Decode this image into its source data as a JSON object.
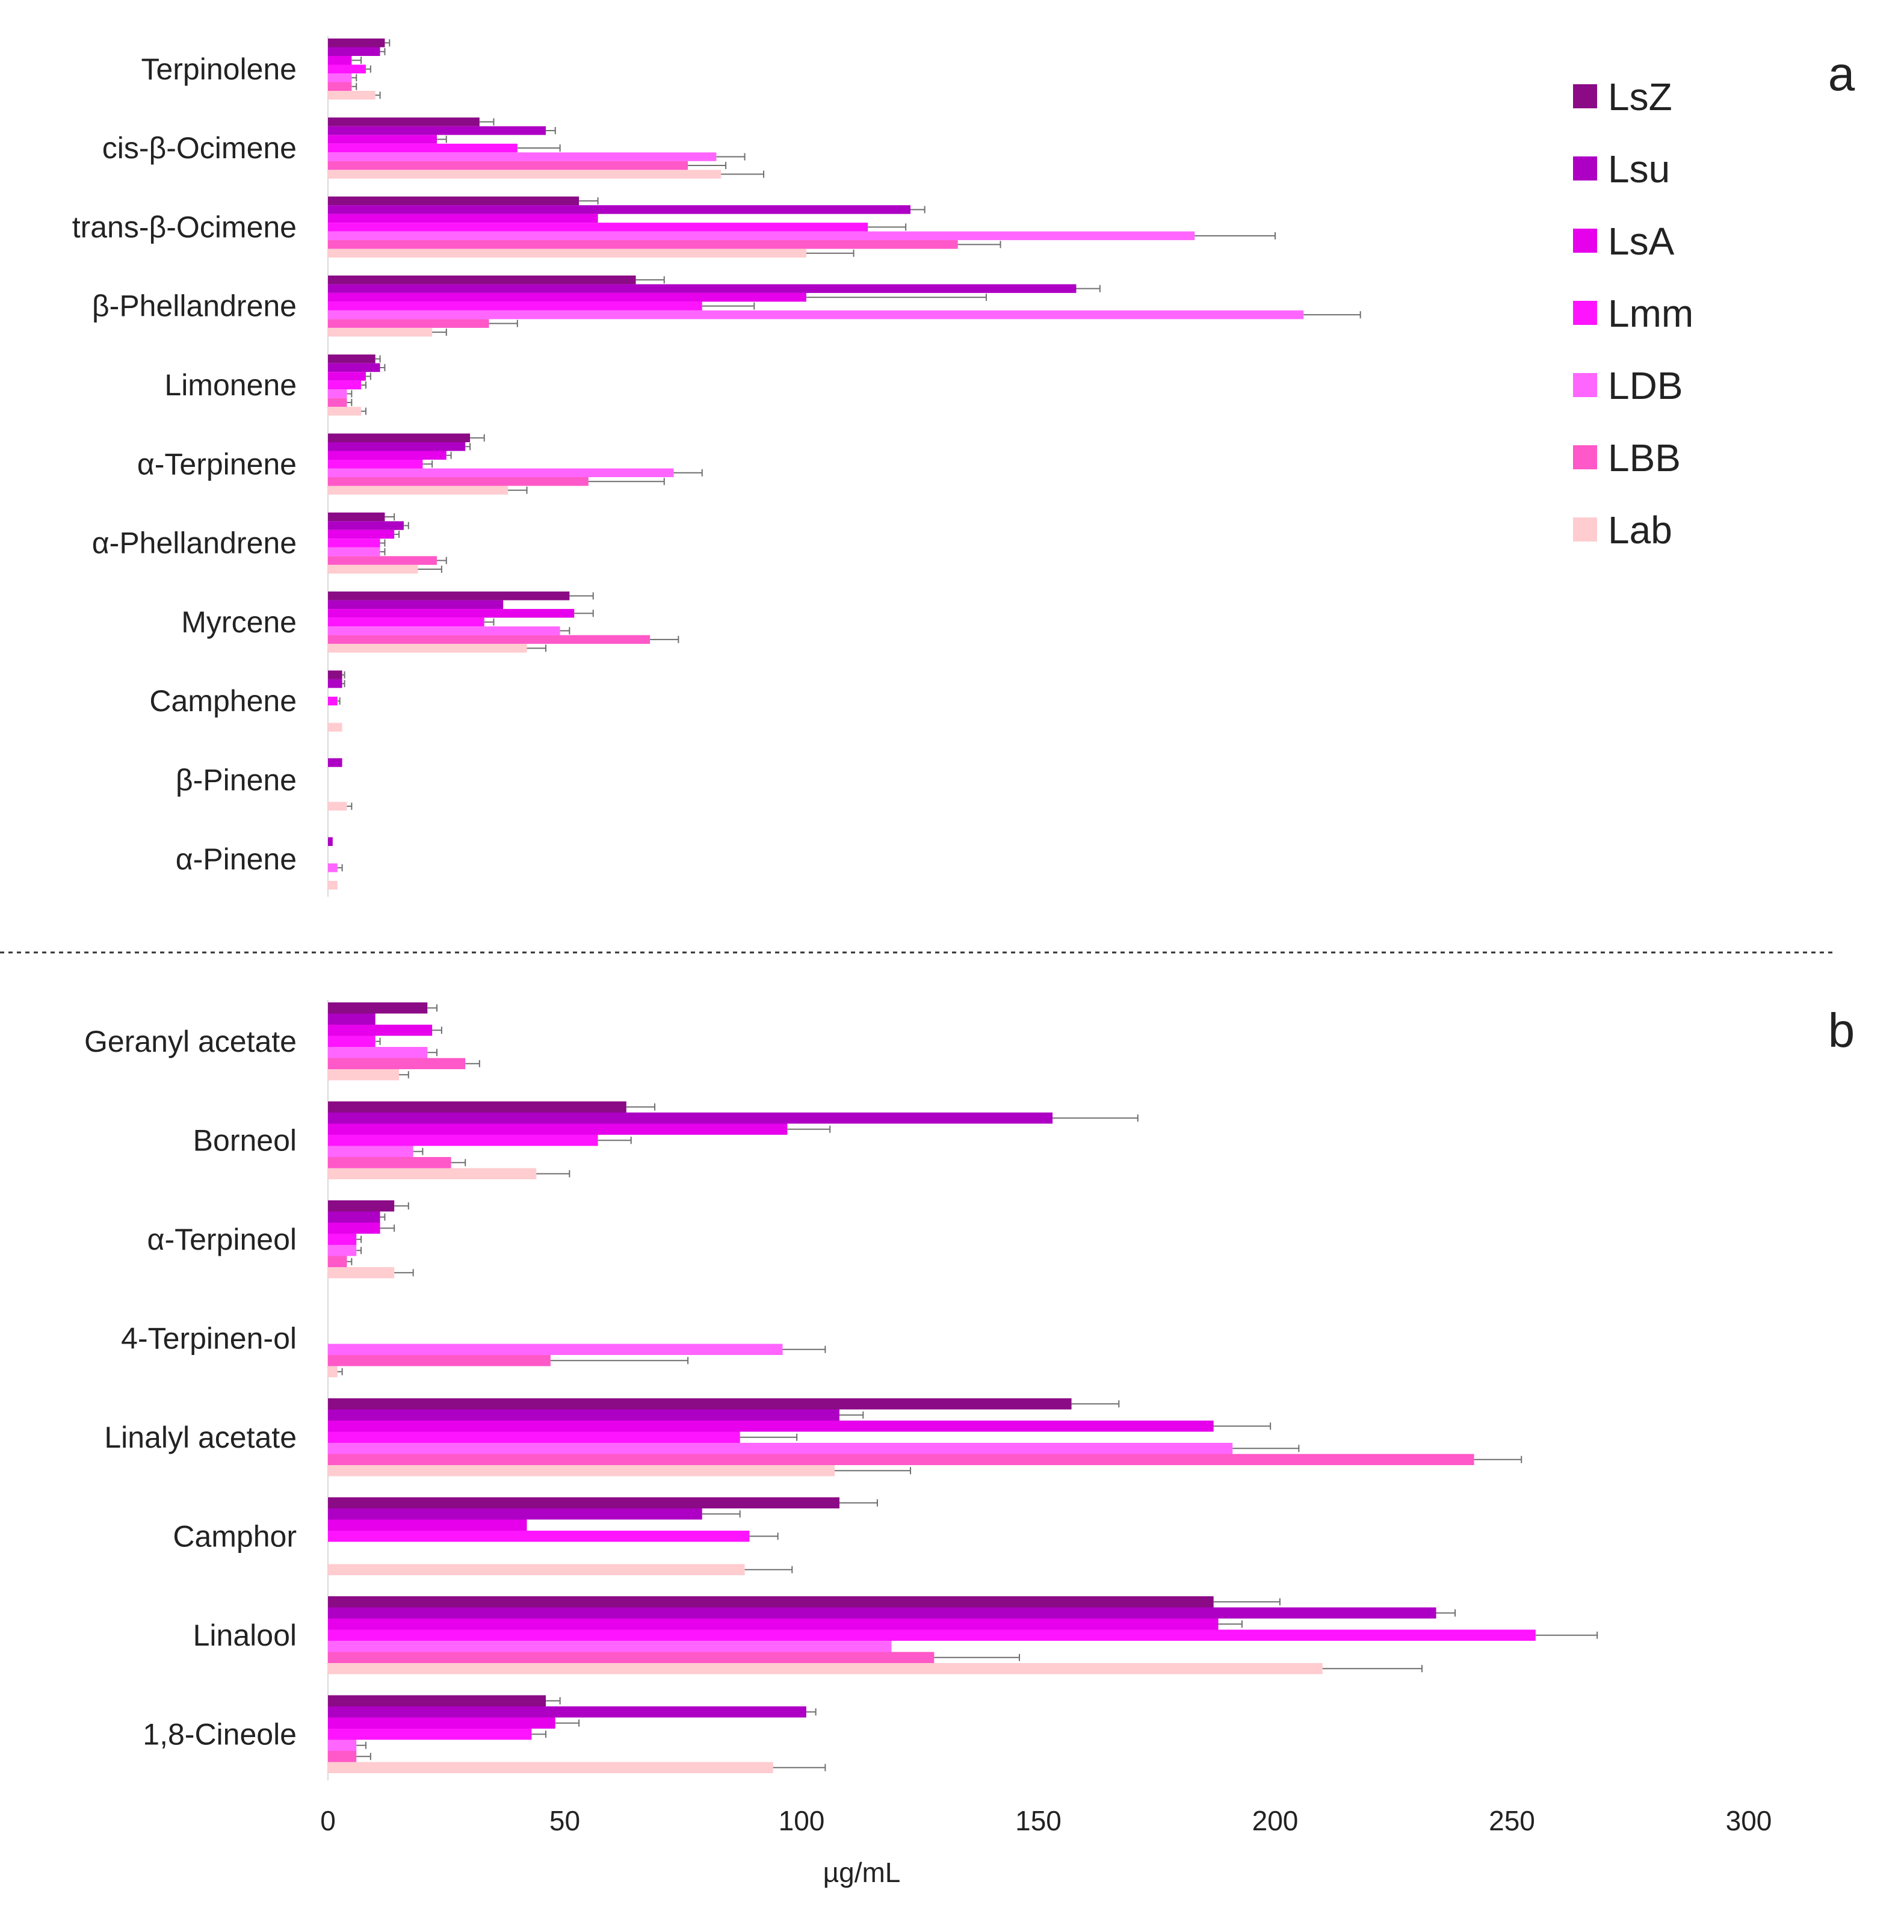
{
  "chart_data": {
    "type": "bar",
    "orientation": "horizontal",
    "xlabel": "µg/mL",
    "xlim": [
      0,
      300
    ],
    "xticks": [
      0,
      50,
      100,
      150,
      200,
      250,
      300
    ],
    "grid": false,
    "legend_position": "top-right",
    "series": [
      {
        "name": "LsZ",
        "color": "#8B0A86"
      },
      {
        "name": "Lsu",
        "color": "#AE00C4"
      },
      {
        "name": "LsA",
        "color": "#E600EB"
      },
      {
        "name": "Lmm",
        "color": "#FF14FF"
      },
      {
        "name": "LDB",
        "color": "#FF66FF"
      },
      {
        "name": "LBB",
        "color": "#FF58C8"
      },
      {
        "name": "Lab",
        "color": "#FFCCD0"
      }
    ],
    "panels": [
      {
        "label": "a",
        "categories": [
          {
            "name": "Terpinolene",
            "values": [
              12,
              11,
              5,
              8,
              5,
              5,
              10
            ],
            "errors": [
              1,
              1,
              2,
              1,
              1,
              1,
              1
            ]
          },
          {
            "name": "cis-β-Ocimene",
            "values": [
              32,
              46,
              23,
              40,
              82,
              76,
              83
            ],
            "errors": [
              3,
              2,
              2,
              9,
              6,
              8,
              9
            ]
          },
          {
            "name": "trans-β-Ocimene",
            "values": [
              53,
              123,
              57,
              114,
              183,
              133,
              101
            ],
            "errors": [
              4,
              3,
              0,
              8,
              17,
              9,
              10
            ]
          },
          {
            "name": "β-Phellandrene",
            "values": [
              65,
              158,
              101,
              79,
              206,
              34,
              22
            ],
            "errors": [
              6,
              5,
              38,
              11,
              12,
              6,
              3
            ]
          },
          {
            "name": "Limonene",
            "values": [
              10,
              11,
              8,
              7,
              4,
              4,
              7
            ],
            "errors": [
              1,
              1,
              1,
              1,
              1,
              1,
              1
            ]
          },
          {
            "name": "α-Terpinene",
            "values": [
              30,
              29,
              25,
              20,
              73,
              55,
              38
            ],
            "errors": [
              3,
              1,
              1,
              2,
              6,
              16,
              4
            ]
          },
          {
            "name": "α-Phellandrene",
            "values": [
              12,
              16,
              14,
              11,
              11,
              23,
              19
            ],
            "errors": [
              2,
              1,
              1,
              1,
              1,
              2,
              5
            ]
          },
          {
            "name": "Myrcene",
            "values": [
              51,
              37,
              52,
              33,
              49,
              68,
              42
            ],
            "errors": [
              5,
              0,
              4,
              2,
              2,
              6,
              4
            ]
          },
          {
            "name": "Camphene",
            "values": [
              3,
              3,
              0,
              2,
              0,
              0,
              3
            ],
            "errors": [
              0.5,
              0.5,
              0,
              0.5,
              0,
              0,
              0
            ]
          },
          {
            "name": "β-Pinene",
            "values": [
              0,
              3,
              0,
              0,
              0,
              0,
              4
            ],
            "errors": [
              0,
              0,
              0,
              0,
              0,
              0,
              1
            ]
          },
          {
            "name": "α-Pinene",
            "values": [
              0,
              1,
              0,
              0,
              2,
              0,
              2
            ],
            "errors": [
              0,
              0,
              0,
              0,
              1,
              0,
              0
            ]
          }
        ]
      },
      {
        "label": "b",
        "categories": [
          {
            "name": "Geranyl acetate",
            "values": [
              21,
              10,
              22,
              10,
              21,
              29,
              15
            ],
            "errors": [
              2,
              0,
              2,
              1,
              2,
              3,
              2
            ]
          },
          {
            "name": "Borneol",
            "values": [
              63,
              153,
              97,
              57,
              18,
              26,
              44
            ],
            "errors": [
              6,
              18,
              9,
              7,
              2,
              3,
              7
            ]
          },
          {
            "name": "α-Terpineol",
            "values": [
              14,
              11,
              11,
              6,
              6,
              4,
              14
            ],
            "errors": [
              3,
              1,
              3,
              1,
              1,
              1,
              4
            ]
          },
          {
            "name": "4-Terpinen-ol",
            "values": [
              0,
              0,
              0,
              0,
              96,
              47,
              2
            ],
            "errors": [
              0,
              0,
              0,
              0,
              9,
              29,
              1
            ]
          },
          {
            "name": "Linalyl acetate",
            "values": [
              157,
              108,
              187,
              87,
              191,
              242,
              107
            ],
            "errors": [
              10,
              5,
              12,
              12,
              14,
              10,
              16
            ]
          },
          {
            "name": "Camphor",
            "values": [
              108,
              79,
              42,
              89,
              0,
              0,
              88
            ],
            "errors": [
              8,
              8,
              0,
              6,
              0,
              0,
              10
            ]
          },
          {
            "name": "Linalool",
            "values": [
              187,
              234,
              188,
              255,
              119,
              128,
              210
            ],
            "errors": [
              14,
              4,
              5,
              13,
              0,
              18,
              21
            ]
          },
          {
            "name": "1,8-Cineole",
            "values": [
              46,
              101,
              48,
              43,
              6,
              6,
              94
            ],
            "errors": [
              3,
              2,
              5,
              3,
              2,
              3,
              11
            ]
          }
        ]
      }
    ]
  }
}
